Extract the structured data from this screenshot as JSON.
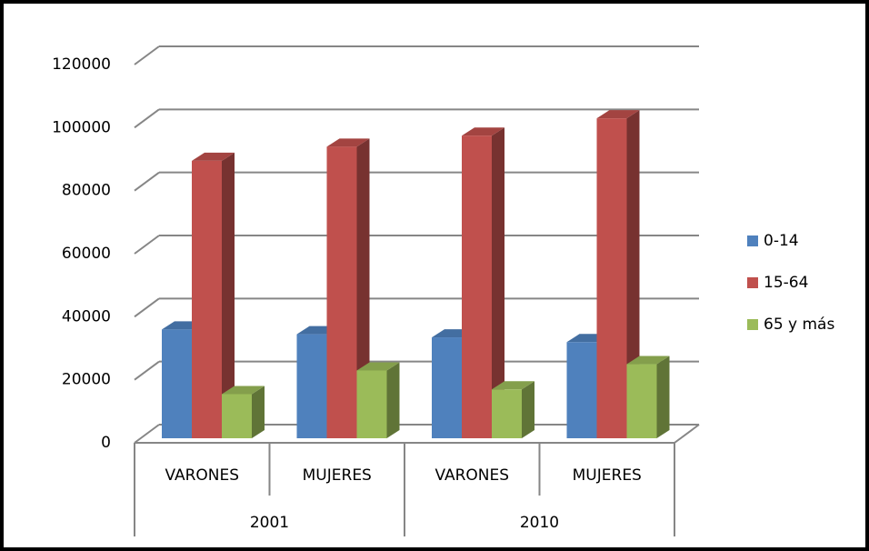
{
  "chart_data": {
    "type": "bar3d",
    "categories": [
      "VARONES",
      "MUJERES",
      "VARONES",
      "MUJERES"
    ],
    "category_groups": [
      "2001",
      "2010"
    ],
    "series": [
      {
        "name": "0-14",
        "color": "#4f81bd",
        "values": [
          34500,
          33000,
          32000,
          30500
        ]
      },
      {
        "name": "15-64",
        "color": "#c0504d",
        "values": [
          88000,
          92500,
          96000,
          101500
        ]
      },
      {
        "name": "65 y más",
        "color": "#9bbb59",
        "values": [
          14000,
          21500,
          15500,
          23500
        ]
      }
    ],
    "ylim": [
      0,
      120000
    ],
    "yticks": [
      0,
      20000,
      40000,
      60000,
      80000,
      100000,
      120000
    ],
    "grid": true,
    "legend": "right"
  }
}
